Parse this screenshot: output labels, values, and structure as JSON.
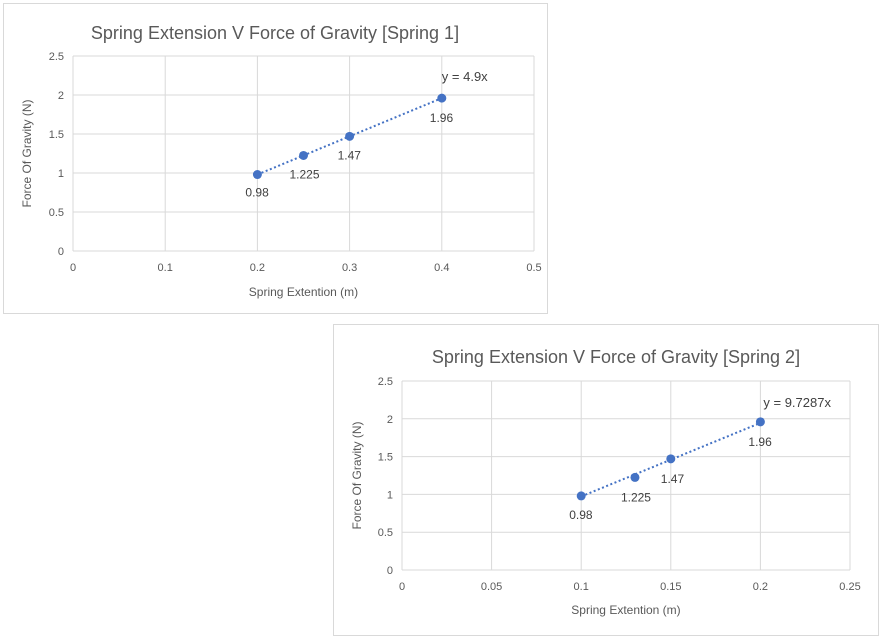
{
  "chart_data": [
    {
      "type": "scatter",
      "title": "Spring Extension V Force of Gravity [Spring 1]",
      "xlabel": "Spring Extention (m)",
      "ylabel": "Force Of Gravity (N)",
      "xlim": [
        0,
        0.5
      ],
      "ylim": [
        0,
        2.5
      ],
      "xticks": [
        "0",
        "0.1",
        "0.2",
        "0.3",
        "0.4",
        "0.5"
      ],
      "yticks": [
        "0",
        "0.5",
        "1",
        "1.5",
        "2",
        "2.5"
      ],
      "x": [
        0.2,
        0.25,
        0.3,
        0.4
      ],
      "y": [
        0.98,
        1.225,
        1.47,
        1.96
      ],
      "data_labels": [
        "0.98",
        "1.225",
        "1.47",
        "1.96"
      ],
      "trendline": {
        "type": "linear",
        "slope": 4.9,
        "equation": "y = 4.9x"
      },
      "grid": true,
      "color": "#4472c4"
    },
    {
      "type": "scatter",
      "title": "Spring Extension V Force of Gravity [Spring 2]",
      "xlabel": "Spring Extention (m)",
      "ylabel": "Force  Of Gravity (N)",
      "xlim": [
        0,
        0.25
      ],
      "ylim": [
        0,
        2.5
      ],
      "xticks": [
        "0",
        "0.05",
        "0.1",
        "0.15",
        "0.2",
        "0.25"
      ],
      "yticks": [
        "0",
        "0.5",
        "1",
        "1.5",
        "2",
        "2.5"
      ],
      "x": [
        0.1,
        0.13,
        0.15,
        0.2
      ],
      "y": [
        0.98,
        1.225,
        1.47,
        1.96
      ],
      "data_labels": [
        "0.98",
        "1.225",
        "1.47",
        "1.96"
      ],
      "trendline": {
        "type": "linear",
        "slope": 9.7287,
        "equation": "y = 9.7287x"
      },
      "grid": true,
      "color": "#4472c4"
    }
  ]
}
